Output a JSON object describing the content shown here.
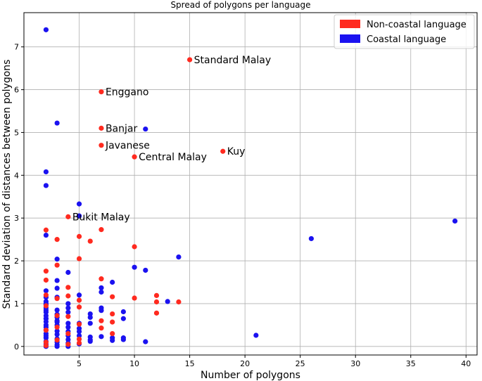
{
  "chart_data": {
    "type": "scatter",
    "title": "Spread of polygons per language",
    "xlabel": "Number of polygons",
    "ylabel": "Standard deviation of distances between polygons",
    "xlim": [
      0,
      41
    ],
    "ylim": [
      -0.2,
      7.8
    ],
    "xticks": [
      5,
      10,
      15,
      20,
      25,
      30,
      35,
      40
    ],
    "yticks": [
      0,
      1,
      2,
      3,
      4,
      5,
      6,
      7
    ],
    "grid": true,
    "legend_position": "top-right",
    "series": [
      {
        "name": "Non-coastal language",
        "color": "#ff2a1f",
        "points": [
          [
            15,
            6.7
          ],
          [
            7,
            5.95
          ],
          [
            7,
            5.1
          ],
          [
            7,
            4.7
          ],
          [
            10,
            4.43
          ],
          [
            18,
            4.56
          ],
          [
            4,
            3.03
          ],
          [
            2,
            2.72
          ],
          [
            3,
            2.5
          ],
          [
            7,
            2.73
          ],
          [
            5,
            2.57
          ],
          [
            6,
            2.46
          ],
          [
            10,
            2.33
          ],
          [
            5,
            2.05
          ],
          [
            3,
            1.9
          ],
          [
            2,
            1.76
          ],
          [
            2,
            1.55
          ],
          [
            7,
            1.58
          ],
          [
            4,
            1.38
          ],
          [
            2,
            1.2
          ],
          [
            3,
            1.12
          ],
          [
            4,
            1.18
          ],
          [
            5,
            1.08
          ],
          [
            8,
            1.16
          ],
          [
            10,
            1.13
          ],
          [
            12,
            1.19
          ],
          [
            12,
            1.04
          ],
          [
            14,
            1.04
          ],
          [
            5,
            0.92
          ],
          [
            2,
            0.95
          ],
          [
            3,
            0.72
          ],
          [
            4,
            0.7
          ],
          [
            8,
            0.76
          ],
          [
            12,
            0.78
          ],
          [
            7,
            0.6
          ],
          [
            8,
            0.57
          ],
          [
            5,
            0.52
          ],
          [
            3,
            0.45
          ],
          [
            7,
            0.43
          ],
          [
            2,
            0.38
          ],
          [
            4,
            0.3
          ],
          [
            8,
            0.3
          ],
          [
            5,
            0.17
          ],
          [
            3,
            0.15
          ],
          [
            2,
            0.1
          ],
          [
            5,
            0.08
          ],
          [
            4,
            0.05
          ],
          [
            2,
            0.02
          ]
        ],
        "labels": [
          {
            "text": "Standard Malay",
            "x": 15,
            "y": 6.7
          },
          {
            "text": "Enggano",
            "x": 7,
            "y": 5.95
          },
          {
            "text": "Banjar",
            "x": 7,
            "y": 5.1
          },
          {
            "text": "Javanese",
            "x": 7,
            "y": 4.7
          },
          {
            "text": "Central Malay",
            "x": 10,
            "y": 4.43
          },
          {
            "text": "Kuy",
            "x": 18,
            "y": 4.56
          },
          {
            "text": "Bukit Malay",
            "x": 4,
            "y": 3.03
          }
        ]
      },
      {
        "name": "Coastal language",
        "color": "#1b12f0",
        "points": [
          [
            2,
            7.4
          ],
          [
            3,
            5.22
          ],
          [
            11,
            5.08
          ],
          [
            2,
            4.08
          ],
          [
            2,
            3.76
          ],
          [
            5,
            3.33
          ],
          [
            5,
            3.05
          ],
          [
            2,
            2.6
          ],
          [
            3,
            2.04
          ],
          [
            14,
            2.09
          ],
          [
            10,
            1.85
          ],
          [
            11,
            1.78
          ],
          [
            4,
            1.73
          ],
          [
            39,
            2.93
          ],
          [
            26,
            2.52
          ],
          [
            21,
            0.26
          ],
          [
            11,
            0.11
          ],
          [
            13,
            1.05
          ],
          [
            3,
            1.54
          ],
          [
            8,
            1.5
          ],
          [
            7,
            1.37
          ],
          [
            7,
            1.27
          ],
          [
            2,
            1.3
          ],
          [
            3,
            1.36
          ],
          [
            5,
            1.2
          ],
          [
            2,
            1.15
          ],
          [
            3,
            1.15
          ],
          [
            4,
            1.0
          ],
          [
            2,
            0.98
          ],
          [
            2,
            0.9
          ],
          [
            4,
            0.9
          ],
          [
            7,
            0.9
          ],
          [
            9,
            0.81
          ],
          [
            2,
            0.8
          ],
          [
            4,
            0.8
          ],
          [
            6,
            0.76
          ],
          [
            7,
            0.84
          ],
          [
            2,
            0.72
          ],
          [
            3,
            0.68
          ],
          [
            6,
            0.68
          ],
          [
            2,
            0.65
          ],
          [
            3,
            0.6
          ],
          [
            9,
            0.65
          ],
          [
            2,
            0.58
          ],
          [
            3,
            0.57
          ],
          [
            4,
            0.54
          ],
          [
            5,
            0.54
          ],
          [
            6,
            0.54
          ],
          [
            2,
            0.5
          ],
          [
            3,
            0.5
          ],
          [
            2,
            0.45
          ],
          [
            5,
            0.42
          ],
          [
            2,
            0.38
          ],
          [
            3,
            0.36
          ],
          [
            4,
            0.35
          ],
          [
            2,
            0.3
          ],
          [
            3,
            0.28
          ],
          [
            4,
            0.25
          ],
          [
            5,
            0.25
          ],
          [
            6,
            0.22
          ],
          [
            7,
            0.23
          ],
          [
            8,
            0.2
          ],
          [
            9,
            0.2
          ],
          [
            2,
            0.2
          ],
          [
            3,
            0.18
          ],
          [
            4,
            0.16
          ],
          [
            6,
            0.15
          ],
          [
            8,
            0.14
          ],
          [
            9,
            0.16
          ],
          [
            2,
            0.12
          ],
          [
            3,
            0.1
          ],
          [
            4,
            0.08
          ],
          [
            5,
            0.06
          ],
          [
            2,
            0.05
          ],
          [
            3,
            0.04
          ],
          [
            2,
            0.0
          ],
          [
            3,
            0.0
          ],
          [
            4,
            0.0
          ],
          [
            2,
            1.0
          ],
          [
            2,
            1.05
          ],
          [
            3,
            0.85
          ],
          [
            2,
            0.85
          ],
          [
            3,
            0.75
          ],
          [
            4,
            0.45
          ],
          [
            5,
            0.35
          ],
          [
            6,
            0.12
          ],
          [
            2,
            0.25
          ],
          [
            2,
            0.65
          ]
        ]
      }
    ]
  }
}
